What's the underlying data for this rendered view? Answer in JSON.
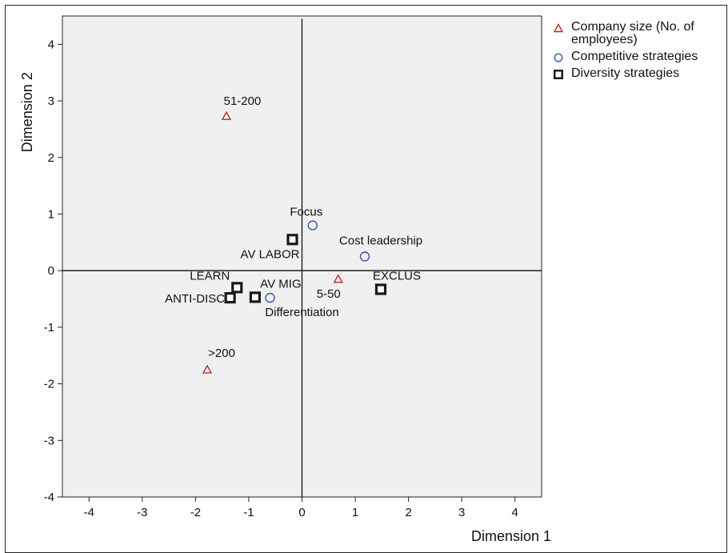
{
  "chart_data": {
    "type": "scatter",
    "title": "",
    "xlabel": "Dimension 1",
    "ylabel": "Dimension 2",
    "xlim": [
      -4.5,
      4.5
    ],
    "ylim": [
      -4,
      4.5
    ],
    "xticks": [
      -4,
      -3,
      -2,
      -1,
      0,
      1,
      2,
      3,
      4
    ],
    "yticks": [
      -4,
      -3,
      -2,
      -1,
      0,
      1,
      2,
      3,
      4
    ],
    "reference_lines": {
      "x": 0,
      "y": 0
    },
    "legend_position": "top-right (outside plot)",
    "series": [
      {
        "name": "Company size (No. of employees)",
        "marker": "triangle",
        "color": "#c0262d",
        "points": [
          {
            "label": "51-200",
            "x": -1.42,
            "y": 2.73
          },
          {
            "label": "5-50",
            "x": 0.68,
            "y": -0.15
          },
          {
            "label": ">200",
            "x": -1.78,
            "y": -1.75
          }
        ]
      },
      {
        "name": "Competitive strategies",
        "marker": "circle",
        "color": "#3a54b0",
        "points": [
          {
            "label": "Focus",
            "x": 0.2,
            "y": 0.8
          },
          {
            "label": "Cost leadership",
            "x": 1.18,
            "y": 0.25
          },
          {
            "label": "Differentiation",
            "x": -0.6,
            "y": -0.48
          }
        ]
      },
      {
        "name": "Diversity strategies",
        "marker": "square",
        "color": "#1a1a1a",
        "points": [
          {
            "label": "AV LABOR",
            "x": -0.18,
            "y": 0.55
          },
          {
            "label": "LEARN",
            "x": -1.22,
            "y": -0.3
          },
          {
            "label": "ANTI-DISC",
            "x": -1.35,
            "y": -0.48
          },
          {
            "label": "AV MIG",
            "x": -0.88,
            "y": -0.47
          },
          {
            "label": "EXCLUS",
            "x": 1.48,
            "y": -0.33
          }
        ]
      }
    ]
  },
  "legend": {
    "items": [
      {
        "label": "Company size (No. of\nemployees)",
        "marker": "triangle",
        "color": "#c0262d"
      },
      {
        "label": "Competitive strategies",
        "marker": "circle",
        "color": "#3a54b0"
      },
      {
        "label": "Diversity strategies",
        "marker": "square",
        "color": "#1a1a1a"
      }
    ]
  },
  "colors": {
    "plot_background": "#f0f0f0",
    "axis": "#222222"
  }
}
